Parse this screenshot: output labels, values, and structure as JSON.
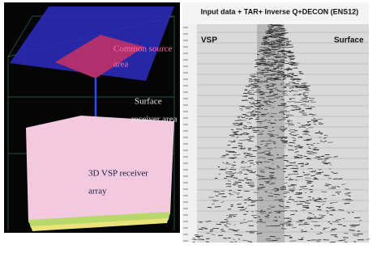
{
  "left_panel": {
    "source_label": [
      "Common source",
      "area"
    ],
    "surface_label": [
      "Surface",
      "receiver area"
    ],
    "array_label": [
      "3D VSP receiver",
      "array"
    ]
  },
  "right_panel": {
    "title": "Input data + TAR+ Inverse Q+DECON (ENS12)",
    "left_label": "VSP",
    "right_label": "Surface"
  }
}
